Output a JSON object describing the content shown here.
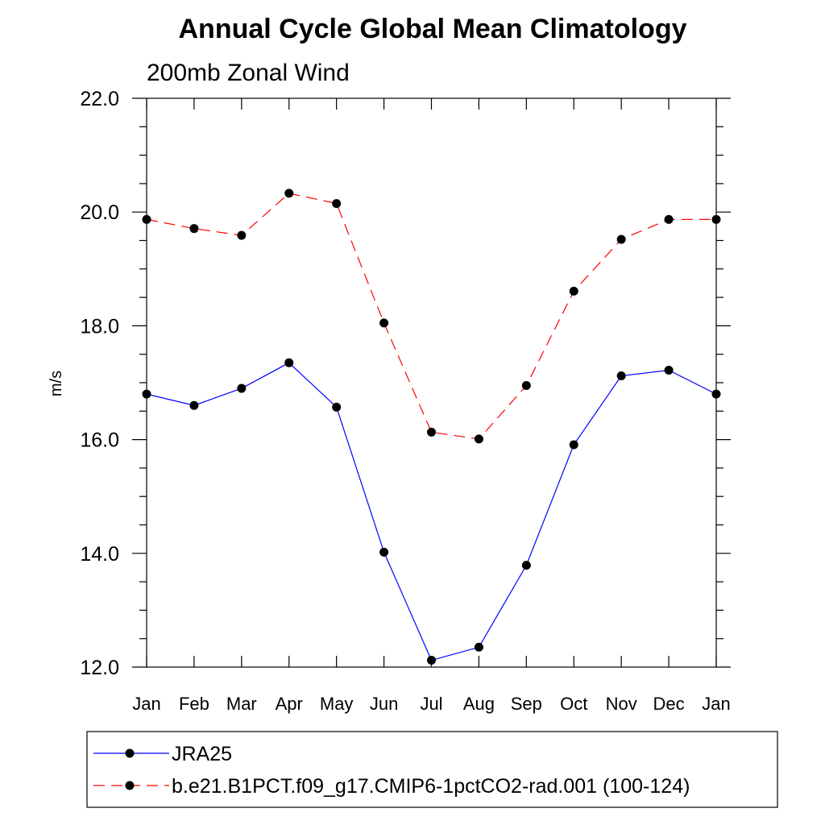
{
  "chart_data": {
    "type": "line",
    "title": "Annual Cycle Global Mean Climatology",
    "subtitle": "200mb Zonal Wind",
    "xlabel": "",
    "ylabel": "m/s",
    "categories": [
      "Jan",
      "Feb",
      "Mar",
      "Apr",
      "May",
      "Jun",
      "Jul",
      "Aug",
      "Sep",
      "Oct",
      "Nov",
      "Dec",
      "Jan"
    ],
    "ylim": [
      12.0,
      22.0
    ],
    "yticks": [
      "12.0",
      "14.0",
      "16.0",
      "18.0",
      "20.0",
      "22.0"
    ],
    "grid": false,
    "legend_position": "bottom",
    "series": [
      {
        "name": "JRA25",
        "color": "#0000ff",
        "line_style": "solid",
        "marker": "filled-circle",
        "values": [
          16.8,
          16.6,
          16.9,
          17.35,
          16.57,
          14.02,
          12.12,
          12.35,
          13.79,
          15.91,
          17.12,
          17.22,
          16.8
        ]
      },
      {
        "name": "b.e21.B1PCT.f09_g17.CMIP6-1pctCO2-rad.001 (100-124)",
        "color": "#ff0000",
        "line_style": "dashed",
        "marker": "filled-circle",
        "values": [
          19.87,
          19.71,
          19.59,
          20.33,
          20.15,
          18.05,
          16.13,
          16.01,
          16.95,
          18.61,
          19.52,
          19.87,
          19.87
        ]
      }
    ]
  }
}
